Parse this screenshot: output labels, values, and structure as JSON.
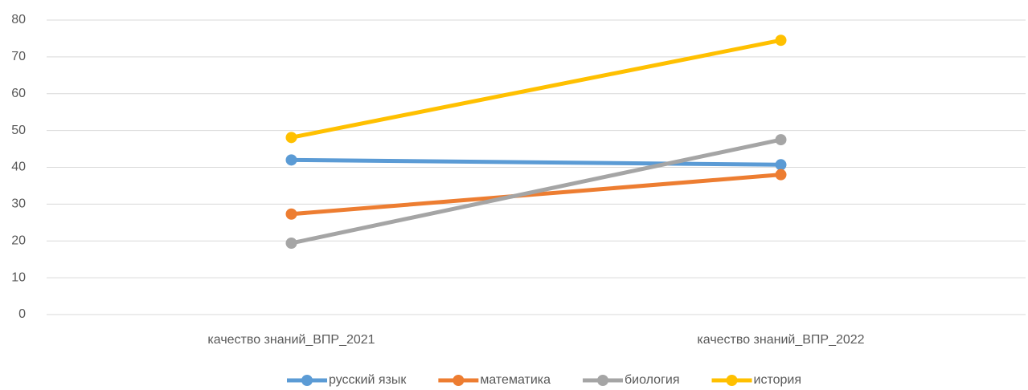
{
  "chart_data": {
    "type": "line",
    "categories": [
      "качество знаний_ВПР_2021",
      "качество знаний_ВПР_2022"
    ],
    "series": [
      {
        "name": "русский язык",
        "color": "#5b9bd5",
        "values": [
          42,
          40.7
        ]
      },
      {
        "name": "математика",
        "color": "#ed7d31",
        "values": [
          27.3,
          38
        ]
      },
      {
        "name": "биология",
        "color": "#a5a5a5",
        "values": [
          19.4,
          47.5
        ]
      },
      {
        "name": "история",
        "color": "#ffc000",
        "values": [
          48.1,
          74.5
        ]
      }
    ],
    "ylim": [
      0,
      80
    ],
    "yticks": [
      0,
      10,
      20,
      30,
      40,
      50,
      60,
      70,
      80
    ],
    "grid": true,
    "legend": "bottom"
  }
}
